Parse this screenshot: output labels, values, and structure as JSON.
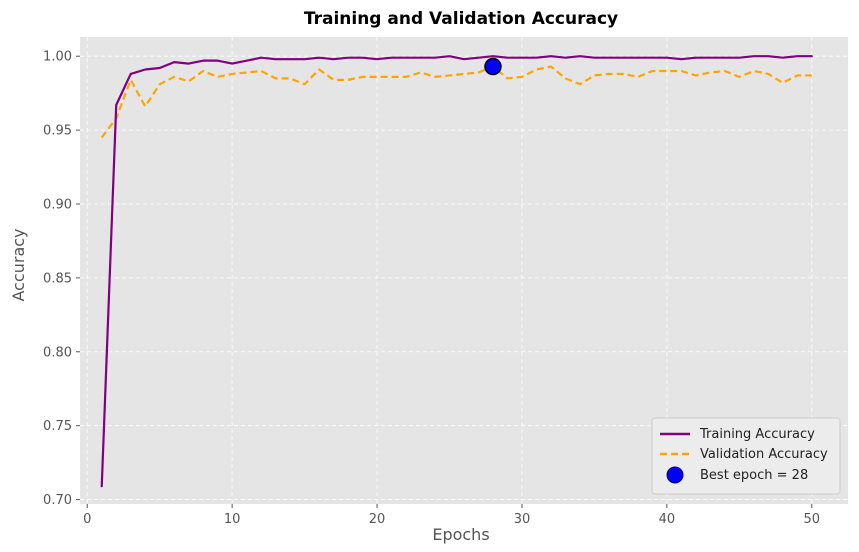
{
  "chart_data": {
    "type": "line",
    "title": "Training and Validation Accuracy",
    "xlabel": "Epochs",
    "ylabel": "Accuracy",
    "xlim": [
      -0.5,
      52.5
    ],
    "ylim": [
      0.697,
      1.013
    ],
    "xticks": [
      0,
      10,
      20,
      30,
      40,
      50
    ],
    "yticks": [
      0.7,
      0.75,
      0.8,
      0.85,
      0.9,
      0.95,
      1.0
    ],
    "ytick_labels": [
      "0.70",
      "0.75",
      "0.80",
      "0.85",
      "0.90",
      "0.95",
      "1.00"
    ],
    "grid": true,
    "legend_position": "bottom-right",
    "background": "#e5e5e5",
    "x": [
      1,
      2,
      3,
      4,
      5,
      6,
      7,
      8,
      9,
      10,
      11,
      12,
      13,
      14,
      15,
      16,
      17,
      18,
      19,
      20,
      21,
      22,
      23,
      24,
      25,
      26,
      27,
      28,
      29,
      30,
      31,
      32,
      33,
      34,
      35,
      36,
      37,
      38,
      39,
      40,
      41,
      42,
      43,
      44,
      45,
      46,
      47,
      48,
      49,
      50
    ],
    "series": [
      {
        "name": "Training Accuracy",
        "color": "#800080",
        "style": "solid",
        "values": [
          0.709,
          0.967,
          0.988,
          0.991,
          0.992,
          0.996,
          0.995,
          0.997,
          0.997,
          0.995,
          0.997,
          0.999,
          0.998,
          0.998,
          0.998,
          0.999,
          0.998,
          0.999,
          0.999,
          0.998,
          0.999,
          0.999,
          0.999,
          0.999,
          1.0,
          0.998,
          0.999,
          1.0,
          0.999,
          0.999,
          0.999,
          1.0,
          0.999,
          1.0,
          0.999,
          0.999,
          0.999,
          0.999,
          0.999,
          0.999,
          0.998,
          0.999,
          0.999,
          0.999,
          0.999,
          1.0,
          1.0,
          0.999,
          1.0,
          1.0
        ]
      },
      {
        "name": "Validation Accuracy",
        "color": "#ffa500",
        "style": "dashed",
        "values": [
          0.945,
          0.958,
          0.984,
          0.966,
          0.981,
          0.986,
          0.983,
          0.99,
          0.986,
          0.988,
          0.989,
          0.99,
          0.985,
          0.985,
          0.981,
          0.991,
          0.984,
          0.984,
          0.986,
          0.986,
          0.986,
          0.986,
          0.989,
          0.986,
          0.987,
          0.988,
          0.989,
          0.993,
          0.985,
          0.986,
          0.991,
          0.993,
          0.985,
          0.981,
          0.987,
          0.988,
          0.988,
          0.986,
          0.99,
          0.99,
          0.99,
          0.987,
          0.989,
          0.99,
          0.986,
          0.99,
          0.988,
          0.982,
          0.987,
          0.987
        ]
      }
    ],
    "annotations": [
      {
        "type": "point",
        "name": "Best epoch = 28",
        "x": 28,
        "y": 0.993,
        "color": "#0000ff"
      }
    ]
  }
}
